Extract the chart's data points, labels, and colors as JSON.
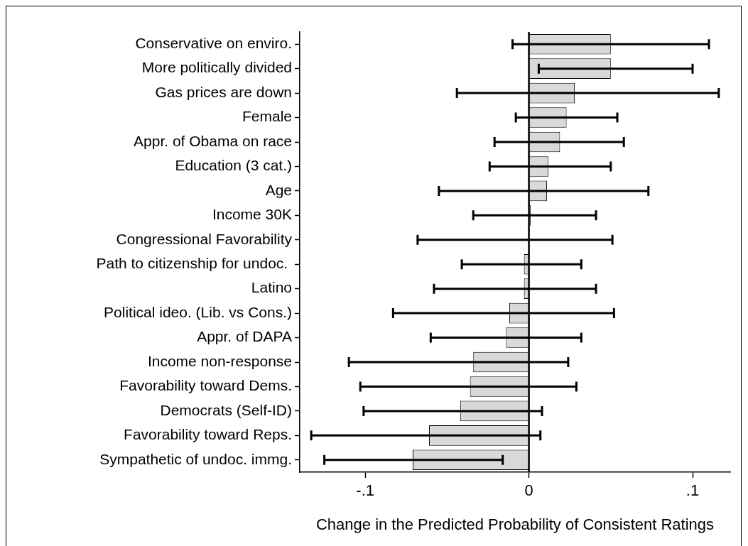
{
  "chart_data": {
    "type": "bar",
    "orientation": "horizontal",
    "xlabel": "Change in the Predicted Probability of Consistent Ratings",
    "categories": [
      "Conservative on enviro.",
      "More politically divided",
      "Gas prices are down",
      "Female",
      "Appr. of Obama on race",
      "Education (3 cat.)",
      "Age",
      "Income 30K",
      "Congressional Favorability",
      "Path to citizenship for undoc. ",
      "Latino",
      "Political ideo. (Lib. vs Cons.)",
      "Appr. of DAPA",
      "Income non-response",
      "Favorability toward Dems.",
      "Democrats (Self-ID)",
      "Favorability toward Reps.",
      "Sympathetic of undoc. immg."
    ],
    "values": [
      0.05,
      0.05,
      0.028,
      0.023,
      0.019,
      0.012,
      0.011,
      0.001,
      0.0,
      -0.003,
      -0.003,
      -0.012,
      -0.014,
      -0.034,
      -0.036,
      -0.042,
      -0.061,
      -0.071
    ],
    "errors": [
      [
        -0.01,
        0.11
      ],
      [
        0.006,
        0.1
      ],
      [
        -0.044,
        0.116
      ],
      [
        -0.008,
        0.054
      ],
      [
        -0.021,
        0.058
      ],
      [
        -0.024,
        0.05
      ],
      [
        -0.055,
        0.073
      ],
      [
        -0.034,
        0.041
      ],
      [
        -0.068,
        0.051
      ],
      [
        -0.041,
        0.032
      ],
      [
        -0.058,
        0.041
      ],
      [
        -0.083,
        0.052
      ],
      [
        -0.06,
        0.032
      ],
      [
        -0.11,
        0.024
      ],
      [
        -0.103,
        0.029
      ],
      [
        -0.101,
        0.008
      ],
      [
        -0.133,
        0.007
      ],
      [
        -0.125,
        -0.016
      ]
    ],
    "color": "#d9d9d9",
    "xlim": [
      -0.14,
      0.123
    ],
    "xticks": [
      {
        "value": -0.1,
        "label": "-.1"
      },
      {
        "value": 0,
        "label": "0"
      },
      {
        "value": 0.1,
        "label": ".1"
      }
    ],
    "ref_lines": [
      {
        "axis": "x",
        "value": 0
      }
    ],
    "grid": false,
    "legend": false
  }
}
